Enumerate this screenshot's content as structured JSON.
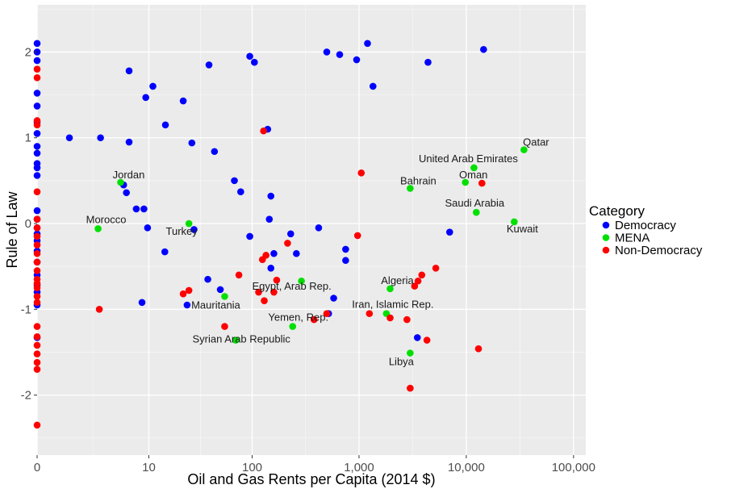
{
  "chart_data": {
    "type": "scatter",
    "xlabel": "Oil and Gas Rents per Capita (2014 $)",
    "ylabel": "Rule of Law",
    "x_scale": "log10(x+1)",
    "xlim": [
      0,
      130000
    ],
    "ylim": [
      -2.7,
      2.55
    ],
    "x_ticks": [
      {
        "value": 0,
        "label": "0"
      },
      {
        "value": 10,
        "label": "10"
      },
      {
        "value": 100,
        "label": "100"
      },
      {
        "value": 1000,
        "label": "1,000"
      },
      {
        "value": 10000,
        "label": "10,000"
      },
      {
        "value": 100000,
        "label": "100,000"
      }
    ],
    "y_ticks": [
      {
        "value": -2,
        "label": "-2"
      },
      {
        "value": -1,
        "label": "-1"
      },
      {
        "value": 0,
        "label": "0"
      },
      {
        "value": 1,
        "label": "1"
      },
      {
        "value": 2,
        "label": "2"
      }
    ],
    "grid": true,
    "legend": {
      "title": "Category",
      "position": "right"
    },
    "series": [
      {
        "name": "Democracy",
        "color": "#0000ff",
        "points": [
          [
            0,
            2.1
          ],
          [
            0,
            2.0
          ],
          [
            0,
            1.9
          ],
          [
            0,
            1.52
          ],
          [
            0,
            1.37
          ],
          [
            0,
            1.18
          ],
          [
            0,
            1.05
          ],
          [
            0,
            0.9
          ],
          [
            0,
            0.82
          ],
          [
            0,
            0.7
          ],
          [
            0,
            0.65
          ],
          [
            0,
            0.56
          ],
          [
            0,
            0.15
          ],
          [
            0,
            0.05
          ],
          [
            0,
            -0.05
          ],
          [
            0,
            -0.12
          ],
          [
            0,
            -0.2
          ],
          [
            0,
            -0.32
          ],
          [
            0,
            -0.45
          ],
          [
            0,
            -0.6
          ],
          [
            0,
            -0.72
          ],
          [
            0,
            -0.8
          ],
          [
            0,
            -0.95
          ],
          [
            0,
            -1.33
          ],
          [
            1,
            1.0
          ],
          [
            2.9,
            1.0
          ],
          [
            6.2,
            1.78
          ],
          [
            6.2,
            0.95
          ],
          [
            5.4,
            0.45
          ],
          [
            5.8,
            0.36
          ],
          [
            7.4,
            0.17
          ],
          [
            8.9,
            0.17
          ],
          [
            8.5,
            -0.92
          ],
          [
            9.3,
            1.47
          ],
          [
            11,
            1.6
          ],
          [
            9.7,
            -0.05
          ],
          [
            14.7,
            1.15
          ],
          [
            14.5,
            -0.33
          ],
          [
            22,
            1.43
          ],
          [
            26.7,
            0.94
          ],
          [
            28,
            -0.07
          ],
          [
            24,
            -0.95
          ],
          [
            39,
            1.85
          ],
          [
            38,
            -0.65
          ],
          [
            44,
            0.84
          ],
          [
            50,
            -0.77
          ],
          [
            68,
            0.5
          ],
          [
            78,
            0.37
          ],
          [
            95,
            1.95
          ],
          [
            105,
            1.88
          ],
          [
            95,
            -0.15
          ],
          [
            140,
            1.1
          ],
          [
            145,
            0.05
          ],
          [
            150,
            0.32
          ],
          [
            150,
            -0.52
          ],
          [
            160,
            -0.35
          ],
          [
            230,
            -0.12
          ],
          [
            260,
            -0.35
          ],
          [
            420,
            -0.05
          ],
          [
            500,
            2.0
          ],
          [
            660,
            1.97
          ],
          [
            750,
            -0.3
          ],
          [
            750,
            -0.43
          ],
          [
            580,
            -0.87
          ],
          [
            520,
            -1.05
          ],
          [
            950,
            1.91
          ],
          [
            1200,
            2.1
          ],
          [
            1350,
            1.6
          ],
          [
            3500,
            -1.33
          ],
          [
            4400,
            1.88
          ],
          [
            7000,
            -0.1
          ],
          [
            14500,
            2.03
          ]
        ]
      },
      {
        "name": "MENA",
        "color": "#00e000",
        "points": [
          [
            2.7,
            -0.06
          ],
          [
            5,
            0.48
          ],
          [
            25,
            0.0
          ],
          [
            55,
            -0.85
          ],
          [
            70,
            -1.36
          ],
          [
            240,
            -1.2
          ],
          [
            290,
            -0.67
          ],
          [
            1800,
            -1.05
          ],
          [
            1950,
            -0.76
          ],
          [
            3000,
            0.41
          ],
          [
            3000,
            -1.51
          ],
          [
            9800,
            0.48
          ],
          [
            11800,
            0.65
          ],
          [
            12400,
            0.13
          ],
          [
            28000,
            0.02
          ],
          [
            34500,
            0.86
          ]
        ]
      },
      {
        "name": "Non-Democracy",
        "color": "#ff0000",
        "points": [
          [
            0,
            1.8
          ],
          [
            0,
            1.7
          ],
          [
            0,
            1.2
          ],
          [
            0,
            1.15
          ],
          [
            0,
            0.37
          ],
          [
            0,
            0.05
          ],
          [
            0,
            -0.05
          ],
          [
            0,
            -0.15
          ],
          [
            0,
            -0.25
          ],
          [
            0,
            -0.35
          ],
          [
            0,
            -0.45
          ],
          [
            0,
            -0.55
          ],
          [
            0,
            -0.65
          ],
          [
            0,
            -0.7
          ],
          [
            0,
            -0.75
          ],
          [
            0,
            -0.85
          ],
          [
            0,
            -0.92
          ],
          [
            0,
            -1.2
          ],
          [
            0,
            -1.32
          ],
          [
            0,
            -1.42
          ],
          [
            0,
            -1.52
          ],
          [
            0,
            -1.62
          ],
          [
            0,
            -1.7
          ],
          [
            0,
            -2.35
          ],
          [
            2.8,
            -1.0
          ],
          [
            22,
            -0.82
          ],
          [
            25,
            -0.78
          ],
          [
            55,
            -1.2
          ],
          [
            75,
            -0.6
          ],
          [
            115,
            -0.8
          ],
          [
            125,
            -0.42
          ],
          [
            130,
            -0.9
          ],
          [
            135,
            -0.37
          ],
          [
            128,
            1.08
          ],
          [
            160,
            -0.8
          ],
          [
            170,
            -0.66
          ],
          [
            215,
            -0.23
          ],
          [
            380,
            -1.12
          ],
          [
            500,
            -1.05
          ],
          [
            970,
            -0.14
          ],
          [
            1050,
            0.59
          ],
          [
            1250,
            -1.05
          ],
          [
            1950,
            -1.1
          ],
          [
            2800,
            -1.12
          ],
          [
            3000,
            -1.92
          ],
          [
            3300,
            -0.73
          ],
          [
            3550,
            -0.67
          ],
          [
            3850,
            -0.6
          ],
          [
            4300,
            -1.36
          ],
          [
            5200,
            -0.52
          ],
          [
            13000,
            -1.46
          ],
          [
            14000,
            0.47
          ]
        ]
      }
    ],
    "annotations": [
      {
        "text": "Qatar",
        "x": 34500,
        "y": 0.86
      },
      {
        "text": "United Arab Emirates",
        "x": 11800,
        "y": 0.65
      },
      {
        "text": "Oman",
        "x": 9800,
        "y": 0.48
      },
      {
        "text": "Bahrain",
        "x": 3000,
        "y": 0.41
      },
      {
        "text": "Saudi Arabia",
        "x": 12400,
        "y": 0.13
      },
      {
        "text": "Kuwait",
        "x": 28000,
        "y": 0.02
      },
      {
        "text": "Jordan",
        "x": 5,
        "y": 0.48
      },
      {
        "text": "Morocco",
        "x": 2.7,
        "y": -0.06
      },
      {
        "text": "Turkey",
        "x": 25,
        "y": 0.0
      },
      {
        "text": "Egypt, Arab Rep.",
        "x": 290,
        "y": -0.67
      },
      {
        "text": "Algeria",
        "x": 1950,
        "y": -0.76
      },
      {
        "text": "Mauritania",
        "x": 55,
        "y": -0.85
      },
      {
        "text": "Iran, Islamic Rep.",
        "x": 1800,
        "y": -1.05
      },
      {
        "text": "Yemen, Rep.",
        "x": 240,
        "y": -1.2
      },
      {
        "text": "Syrian Arab Republic",
        "x": 70,
        "y": -1.36
      },
      {
        "text": "Libya",
        "x": 3000,
        "y": -1.51
      }
    ]
  }
}
